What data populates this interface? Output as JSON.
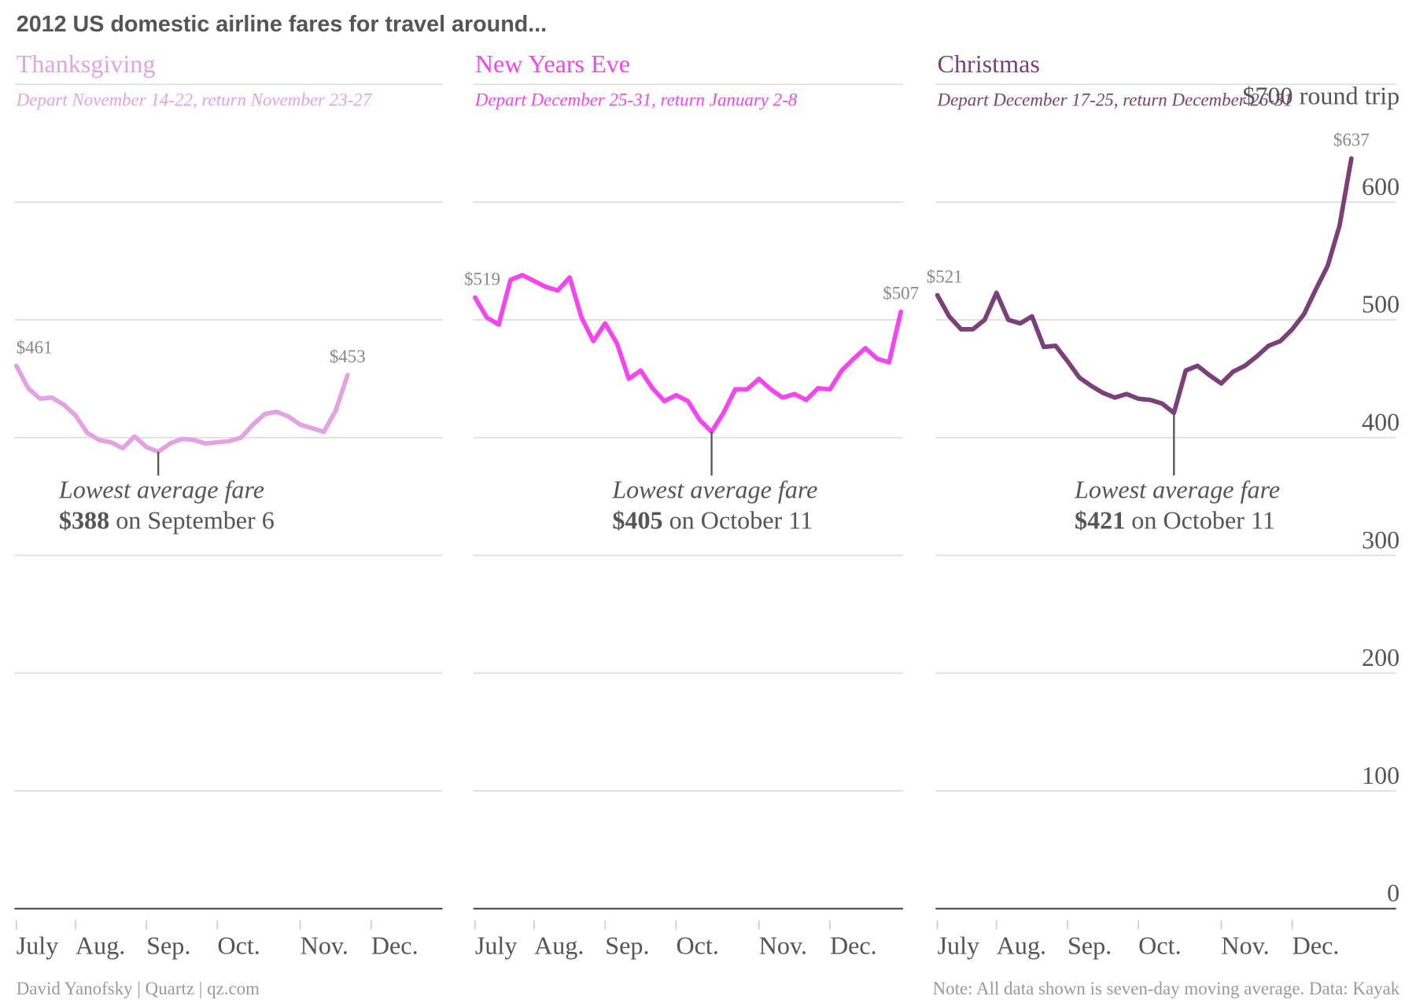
{
  "title": "2012 US domestic airline fares for travel around...",
  "credit": "David Yanofsky | Quartz | qz.com",
  "note": "Note: All data shown is seven-day moving average. Data: Kayak",
  "chart_data": [
    {
      "type": "line",
      "title": "Thanksgiving",
      "subtitle": "Depart November 14-22, return November 23-27",
      "color": "#e3a3e3",
      "categories": [
        "July",
        null,
        null,
        null,
        null,
        "Aug.",
        null,
        null,
        null,
        null,
        null,
        "Sep.",
        null,
        null,
        null,
        null,
        null,
        "Oct.",
        null,
        null,
        null,
        null,
        null,
        null,
        "Nov.",
        null,
        null,
        null,
        null,
        null,
        "Dec.",
        null,
        null,
        null,
        null,
        null,
        null
      ],
      "values": [
        461,
        442,
        433,
        434,
        428,
        419,
        404,
        398,
        396,
        391,
        401,
        392,
        388,
        395,
        399,
        398,
        395,
        396,
        397,
        400,
        411,
        420,
        422,
        418,
        411,
        408,
        405,
        423,
        453,
        null,
        null,
        null,
        null,
        null,
        null,
        null,
        null
      ],
      "value_labels": [
        "$461",
        null,
        null,
        null,
        null,
        null,
        null,
        null,
        null,
        null,
        null,
        null,
        null,
        null,
        null,
        null,
        null,
        null,
        null,
        null,
        null,
        null,
        null,
        null,
        null,
        null,
        null,
        null,
        "$453",
        null,
        null,
        null,
        null,
        null,
        null,
        null,
        null
      ],
      "annotation": {
        "text": "Lowest average fare",
        "value_label": "$388",
        "date": "on September 6"
      }
    },
    {
      "type": "line",
      "title": "New Years Eve",
      "subtitle": "Depart December 25-31, return January 2-8",
      "color": "#f545f0",
      "categories": [
        "July",
        null,
        null,
        null,
        null,
        "Aug.",
        null,
        null,
        null,
        null,
        null,
        "Sep.",
        null,
        null,
        null,
        null,
        null,
        "Oct.",
        null,
        null,
        null,
        null,
        null,
        null,
        "Nov.",
        null,
        null,
        null,
        null,
        null,
        "Dec.",
        null,
        null,
        null,
        null,
        null,
        null
      ],
      "values": [
        519,
        502,
        496,
        534,
        538,
        533,
        528,
        525,
        536,
        502,
        482,
        497,
        480,
        450,
        457,
        442,
        431,
        436,
        431,
        415,
        405,
        421,
        441,
        441,
        450,
        441,
        434,
        437,
        432,
        442,
        441,
        457,
        467,
        476,
        467,
        464,
        507
      ],
      "value_labels": [
        "$519",
        null,
        null,
        null,
        null,
        null,
        null,
        null,
        null,
        null,
        null,
        null,
        null,
        null,
        null,
        null,
        null,
        null,
        null,
        null,
        null,
        null,
        null,
        null,
        null,
        null,
        null,
        null,
        null,
        null,
        null,
        null,
        null,
        null,
        null,
        null,
        "$507"
      ],
      "annotation": {
        "text": "Lowest average fare",
        "value_label": "$405",
        "date": "on October 11"
      }
    },
    {
      "type": "line",
      "title": "Christmas",
      "subtitle": "Depart December 17-25, return December 26-31",
      "color": "#7b4077",
      "categories": [
        "July",
        null,
        null,
        null,
        null,
        "Aug.",
        null,
        null,
        null,
        null,
        null,
        "Sep.",
        null,
        null,
        null,
        null,
        null,
        "Oct.",
        null,
        null,
        null,
        null,
        null,
        null,
        "Nov.",
        null,
        null,
        null,
        null,
        null,
        "Dec.",
        null,
        null,
        null,
        null,
        null,
        null
      ],
      "values": [
        521,
        503,
        492,
        492,
        500,
        523,
        500,
        497,
        503,
        477,
        478,
        465,
        451,
        444,
        438,
        434,
        437,
        433,
        432,
        429,
        421,
        457,
        461,
        453,
        446,
        456,
        461,
        469,
        478,
        482,
        492,
        505,
        526,
        546,
        580,
        637,
        null
      ],
      "value_labels": [
        "$521",
        null,
        null,
        null,
        null,
        null,
        null,
        null,
        null,
        null,
        null,
        null,
        null,
        null,
        null,
        null,
        null,
        null,
        null,
        null,
        null,
        null,
        null,
        null,
        null,
        null,
        null,
        null,
        null,
        null,
        null,
        null,
        null,
        null,
        null,
        "$637",
        null
      ],
      "annotation": {
        "text": "Lowest average fare",
        "value_label": "$421",
        "date": "on October 11"
      },
      "ylim": [
        0,
        700
      ],
      "yticks": [
        0,
        100,
        200,
        300,
        400,
        500,
        600,
        {
          "value": 700,
          "label": "$700 round trip"
        }
      ],
      "grid": true
    }
  ]
}
